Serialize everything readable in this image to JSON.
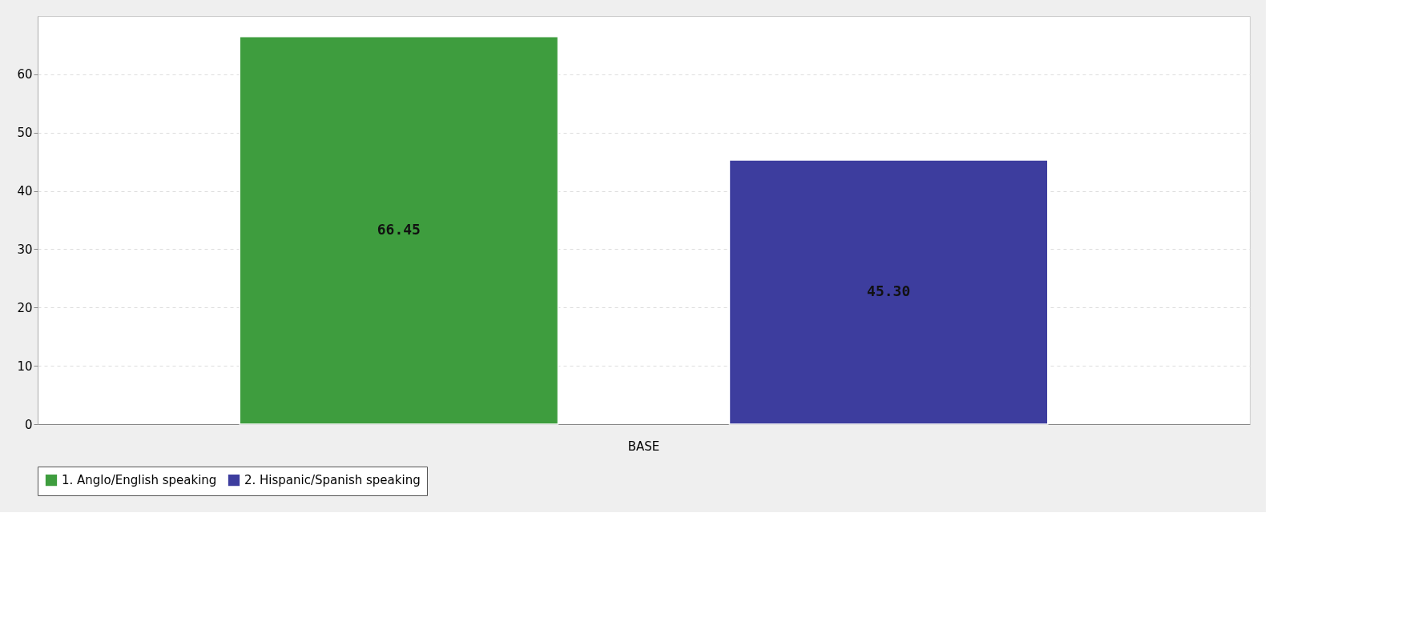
{
  "chart_data": {
    "type": "bar",
    "categories": [
      "BASE"
    ],
    "series": [
      {
        "name": "1. Anglo/English speaking",
        "color": "#3e9d3e",
        "values": [
          66.45
        ],
        "value_labels": [
          "66.45"
        ]
      },
      {
        "name": "2. Hispanic/Spanish speaking",
        "color": "#3d3d9e",
        "values": [
          45.3
        ],
        "value_labels": [
          "45.30"
        ]
      }
    ],
    "ylim": [
      0,
      70
    ],
    "yticks": [
      0,
      10,
      20,
      30,
      40,
      50,
      60
    ],
    "grid": "y",
    "legend": "bottom"
  }
}
